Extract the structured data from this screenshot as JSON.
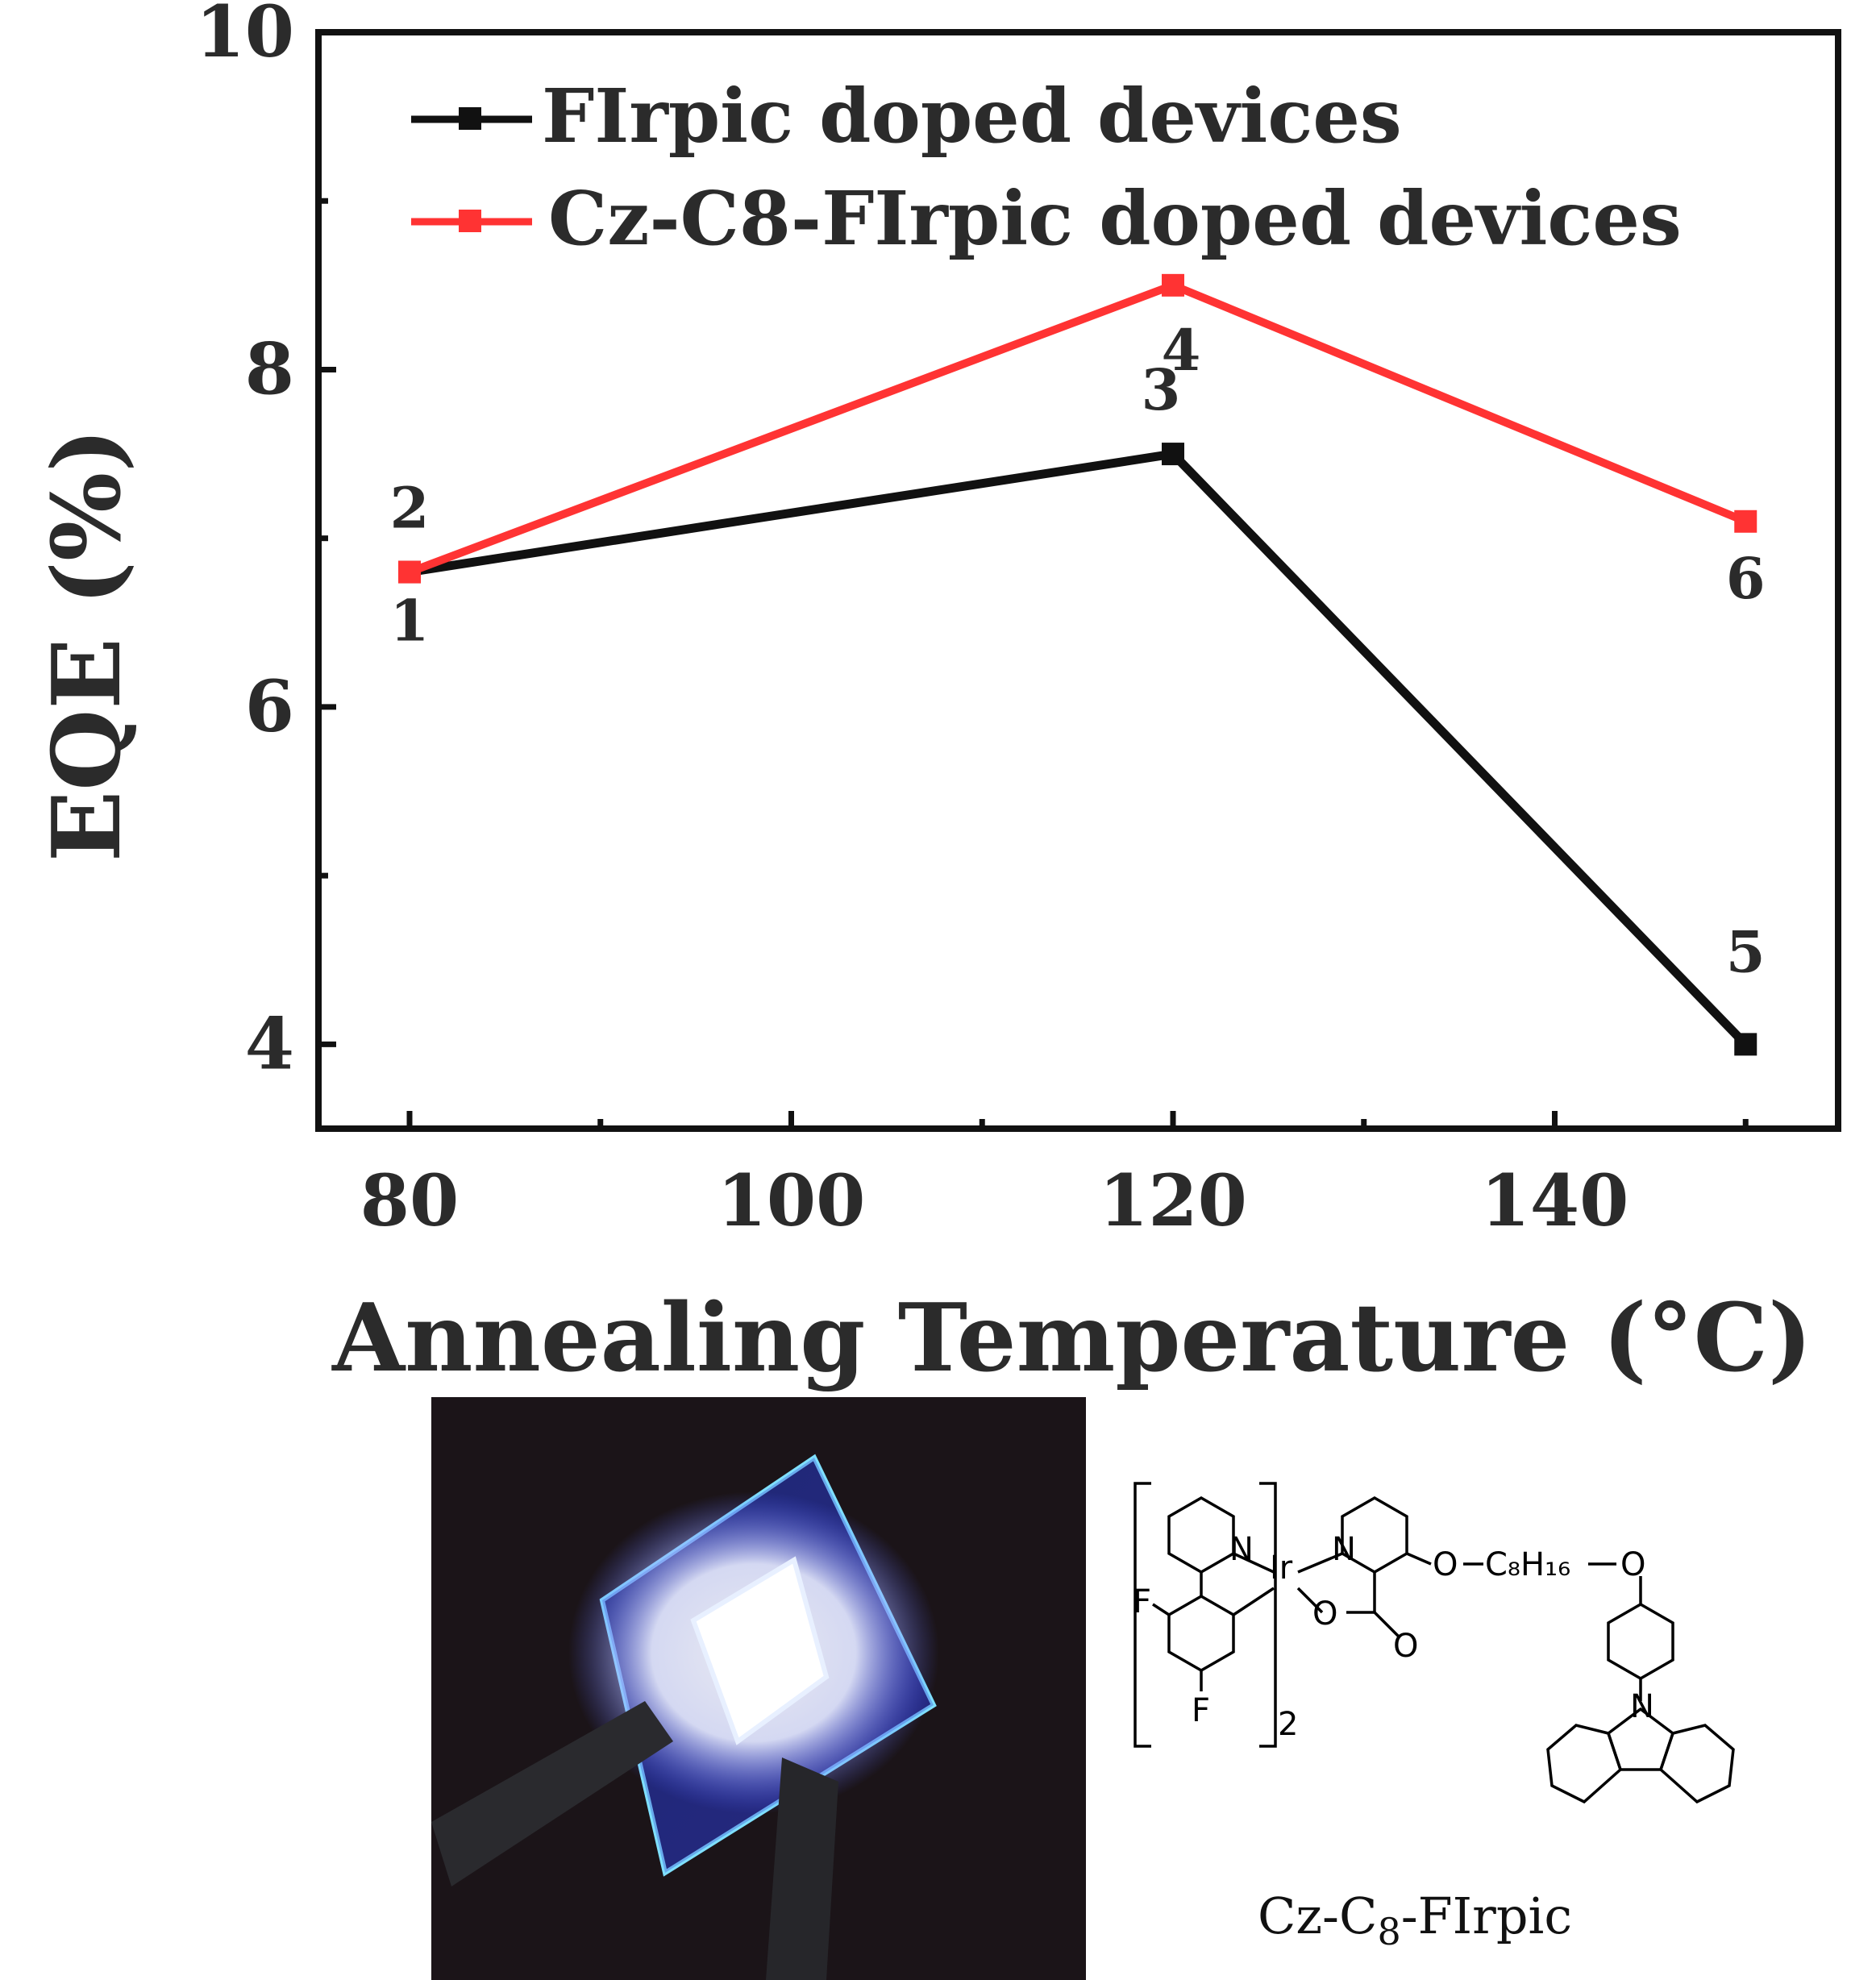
{
  "chart_data": {
    "type": "line",
    "xlabel": "Annealing Temperature (°C)",
    "ylabel": "EQE (%)",
    "xlim": [
      75,
      165
    ],
    "ylim": [
      3.5,
      10
    ],
    "x_ticks": [
      "80",
      "100",
      "120",
      "140"
    ],
    "y_ticks": [
      "4",
      "6",
      "8",
      "10"
    ],
    "grid": false,
    "legend_position": "top-left",
    "series": [
      {
        "name": "FIrpic doped devices",
        "color": "#111111",
        "x": [
          80,
          120,
          150
        ],
        "y": [
          6.8,
          7.5,
          4.0
        ],
        "point_labels": [
          "1",
          "3",
          "5"
        ]
      },
      {
        "name": "Cz-C8-FIrpic doped devices",
        "color": "#ff3333",
        "x": [
          80,
          120,
          150
        ],
        "y": [
          6.8,
          8.5,
          7.1
        ],
        "point_labels": [
          "2",
          "4",
          "6"
        ]
      }
    ]
  },
  "compound": {
    "name_prefix": "Cz-C",
    "name_sub": "8",
    "name_suffix": "-FIrpic",
    "atoms": {
      "n": "N",
      "ir": "Ir",
      "f": "F",
      "o": "O",
      "c8h16": "C₈H₁₆",
      "count": "2"
    }
  }
}
